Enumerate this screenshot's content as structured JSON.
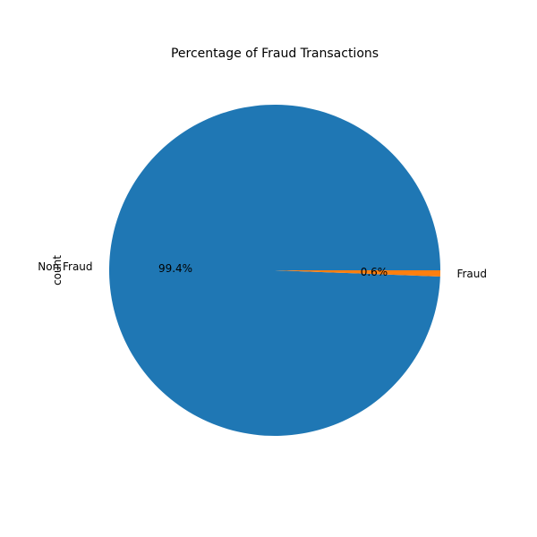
{
  "chart_data": {
    "type": "pie",
    "title": "Percentage of Fraud Transactions",
    "ylabel": "count",
    "labels": [
      "Non Fraud",
      "Fraud"
    ],
    "values": [
      99.4,
      0.6
    ],
    "percent_labels": [
      "99.4%",
      "0.6%"
    ],
    "colors": [
      "#1f77b4",
      "#ff7f0e"
    ],
    "start_angle_deg": 0,
    "direction": "counterclockwise"
  }
}
